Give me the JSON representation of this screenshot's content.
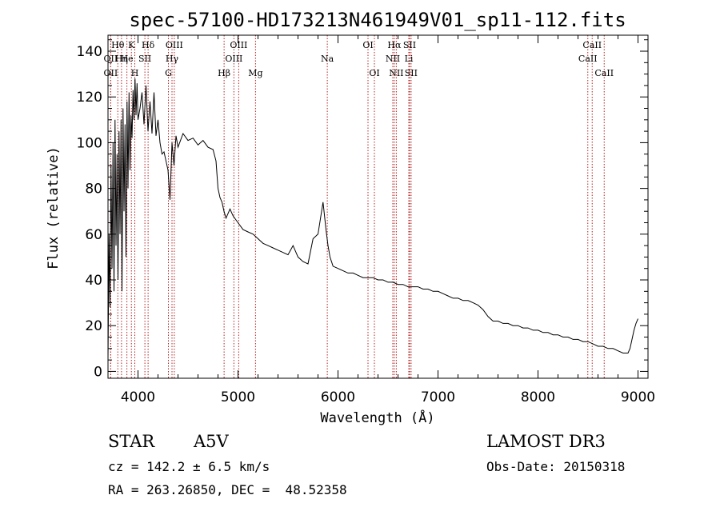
{
  "chart_data": {
    "type": "line",
    "title": "spec-57100-HD173213N461949V01_sp11-112.fits",
    "xlabel": "Wavelength (Å)",
    "ylabel": "Flux (relative)",
    "xlim": [
      3700,
      9100
    ],
    "ylim": [
      -3,
      147
    ],
    "xticks": [
      4000,
      5000,
      6000,
      7000,
      8000,
      9000
    ],
    "yticks": [
      0,
      20,
      40,
      60,
      80,
      100,
      120,
      140
    ],
    "series": [
      {
        "name": "flux",
        "x": [
          3700,
          3710,
          3720,
          3730,
          3740,
          3750,
          3760,
          3770,
          3780,
          3790,
          3800,
          3810,
          3820,
          3830,
          3840,
          3850,
          3860,
          3870,
          3880,
          3890,
          3900,
          3910,
          3920,
          3930,
          3940,
          3950,
          3960,
          3970,
          3980,
          3990,
          4000,
          4020,
          4040,
          4060,
          4080,
          4100,
          4120,
          4140,
          4160,
          4180,
          4200,
          4220,
          4240,
          4260,
          4280,
          4300,
          4320,
          4340,
          4360,
          4380,
          4400,
          4450,
          4500,
          4550,
          4600,
          4650,
          4700,
          4750,
          4780,
          4800,
          4820,
          4840,
          4860,
          4880,
          4900,
          4920,
          4950,
          5000,
          5050,
          5100,
          5150,
          5200,
          5250,
          5300,
          5350,
          5400,
          5450,
          5500,
          5550,
          5600,
          5650,
          5700,
          5750,
          5800,
          5850,
          5880,
          5900,
          5920,
          5950,
          6000,
          6050,
          6100,
          6150,
          6200,
          6250,
          6300,
          6350,
          6400,
          6450,
          6500,
          6550,
          6600,
          6650,
          6700,
          6750,
          6800,
          6850,
          6900,
          6950,
          7000,
          7050,
          7100,
          7150,
          7200,
          7250,
          7300,
          7350,
          7400,
          7450,
          7500,
          7550,
          7600,
          7650,
          7700,
          7750,
          7800,
          7850,
          7900,
          7950,
          8000,
          8050,
          8100,
          8150,
          8200,
          8250,
          8300,
          8350,
          8400,
          8450,
          8500,
          8550,
          8600,
          8650,
          8700,
          8750,
          8800,
          8850,
          8900,
          8920,
          8940,
          8960,
          8980,
          9000
        ],
        "y": [
          5,
          60,
          28,
          90,
          45,
          100,
          35,
          110,
          55,
          95,
          40,
          105,
          60,
          110,
          35,
          115,
          70,
          108,
          50,
          118,
          80,
          122,
          88,
          112,
          102,
          123,
          110,
          128,
          112,
          126,
          110,
          115,
          122,
          108,
          125,
          105,
          118,
          104,
          122,
          103,
          110,
          100,
          95,
          96,
          92,
          88,
          75,
          100,
          90,
          103,
          98,
          104,
          101,
          102,
          99,
          101,
          98,
          97,
          92,
          80,
          76,
          74,
          70,
          67,
          69,
          71,
          68,
          65,
          62,
          61,
          60,
          58,
          56,
          55,
          54,
          53,
          52,
          51,
          55,
          50,
          48,
          47,
          58,
          60,
          74,
          62,
          55,
          50,
          46,
          45,
          44,
          43,
          43,
          42,
          41,
          41,
          41,
          40,
          40,
          39,
          39,
          38,
          38,
          37,
          37,
          37,
          36,
          36,
          35,
          35,
          34,
          33,
          32,
          32,
          31,
          31,
          30,
          29,
          27,
          24,
          22,
          22,
          21,
          21,
          20,
          20,
          19,
          19,
          18,
          18,
          17,
          17,
          16,
          16,
          15,
          15,
          14,
          14,
          13,
          13,
          12,
          11,
          11,
          10,
          10,
          9,
          8,
          8,
          10,
          14,
          18,
          21,
          23
        ]
      }
    ],
    "spectral_lines": [
      {
        "label": "Hδ",
        "x": 4101,
        "row": 0
      },
      {
        "label": "Hγ",
        "x": 4340,
        "row": 1
      },
      {
        "label": "Hβ",
        "x": 4861,
        "row": 2
      },
      {
        "label": "K",
        "x": 3934,
        "row": 0
      },
      {
        "label": "H",
        "x": 3968,
        "row": 2
      },
      {
        "label": "G",
        "x": 4304,
        "row": 2
      },
      {
        "label": "OIII",
        "x": 4363,
        "row": 0
      },
      {
        "label": "OIII",
        "x": 4959,
        "row": 1
      },
      {
        "label": "OIII",
        "x": 5007,
        "row": 0
      },
      {
        "label": "Mg",
        "x": 5175,
        "row": 2
      },
      {
        "label": "Na",
        "x": 5893,
        "row": 1
      },
      {
        "label": "OI",
        "x": 6300,
        "row": 0
      },
      {
        "label": "OI",
        "x": 6364,
        "row": 2
      },
      {
        "label": "NII",
        "x": 6548,
        "row": 1
      },
      {
        "label": "Hα",
        "x": 6563,
        "row": 0
      },
      {
        "label": "NII",
        "x": 6583,
        "row": 2
      },
      {
        "label": "Li",
        "x": 6708,
        "row": 1
      },
      {
        "label": "SII",
        "x": 6716,
        "row": 0
      },
      {
        "label": "SII",
        "x": 6731,
        "row": 2
      },
      {
        "label": "CaII",
        "x": 8498,
        "row": 1
      },
      {
        "label": "CaII",
        "x": 8542,
        "row": 0
      },
      {
        "label": "CaII",
        "x": 8662,
        "row": 2
      },
      {
        "label": "Hθ",
        "x": 3798,
        "row": 0
      },
      {
        "label": "Hη",
        "x": 3835,
        "row": 1
      },
      {
        "label": "OII",
        "x": 3727,
        "row": 2
      },
      {
        "label": "OII",
        "x": 3727,
        "row": 1
      },
      {
        "label": "He",
        "x": 3889,
        "row": 1
      },
      {
        "label": "SII",
        "x": 4069,
        "row": 1
      }
    ],
    "line_color": "#b22222",
    "curve_color": "#000000"
  },
  "info": {
    "star_class": "STAR",
    "subclass": "A5V",
    "survey": "LAMOST DR3",
    "cz": "cz = 142.2 ± 6.5 km/s",
    "obs_date": "Obs-Date: 20150318",
    "coords": "RA = 263.26850, DEC =  48.52358"
  }
}
